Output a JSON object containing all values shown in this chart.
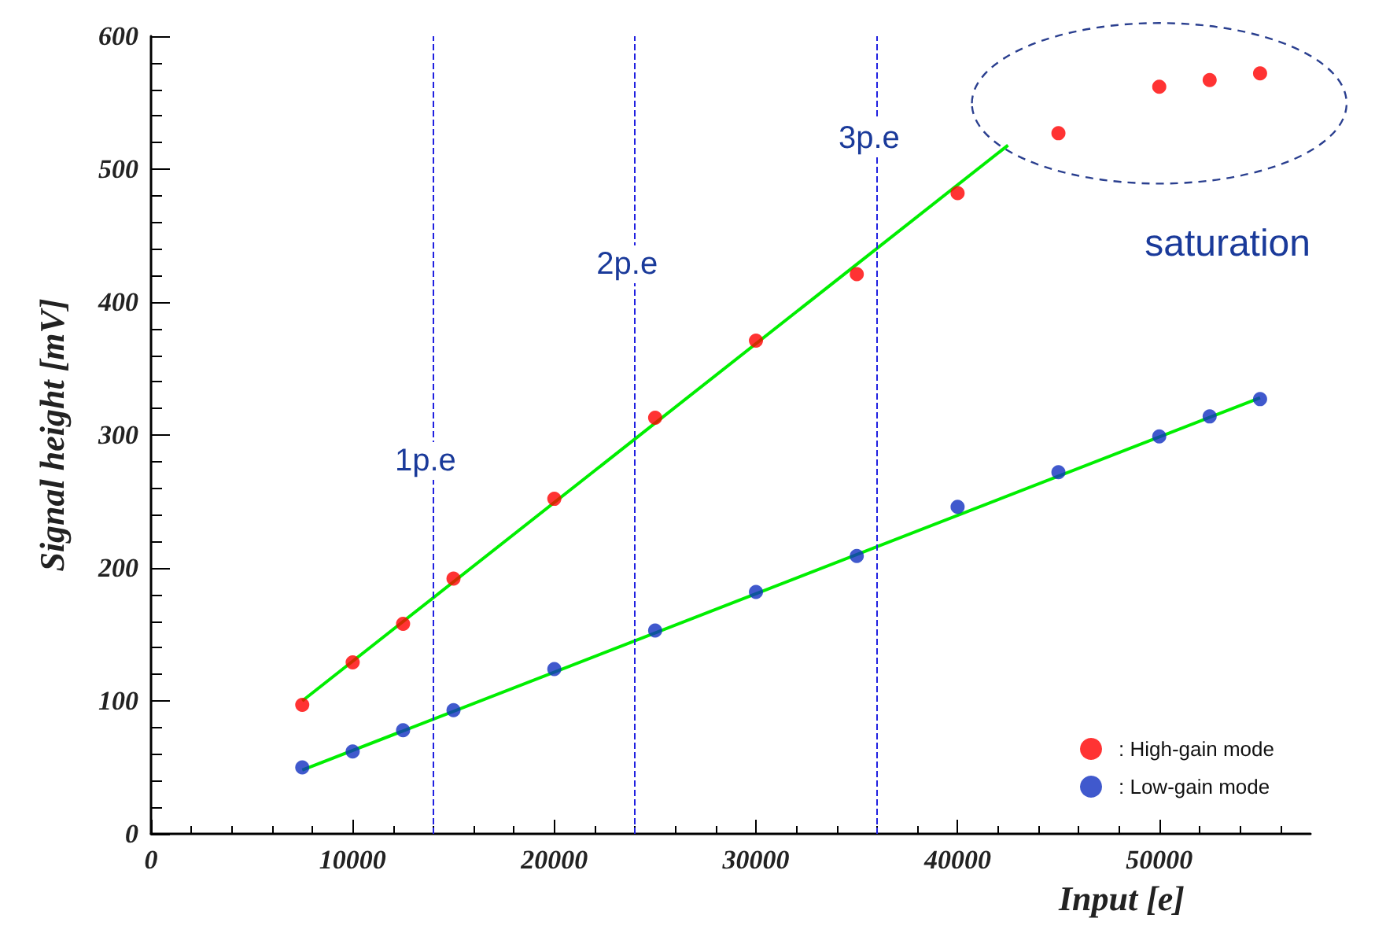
{
  "chart_data": {
    "type": "scatter",
    "xlabel": "Input [e]",
    "ylabel": "Signal height [mV]",
    "xlim": [
      0,
      57500
    ],
    "xticks": [
      0,
      10000,
      20000,
      30000,
      40000,
      50000
    ],
    "ylim": [
      0,
      600
    ],
    "yticks": [
      0,
      100,
      200,
      300,
      400,
      500,
      600
    ],
    "x": [
      7500,
      10000,
      12500,
      15000,
      20000,
      25000,
      30000,
      35000,
      40000,
      45000,
      50000,
      52500,
      55000
    ],
    "series": [
      {
        "name": ": High-gain mode",
        "color": "#ff0000",
        "values": [
          97,
          129,
          158,
          192,
          252,
          313,
          371,
          421,
          482,
          527,
          562,
          567,
          572
        ]
      },
      {
        "name": ": Low-gain mode",
        "color": "#1030c0",
        "values": [
          50,
          62,
          78,
          93,
          124,
          153,
          182,
          209,
          246,
          272,
          299,
          314,
          327
        ]
      },
      {
        "type": "line",
        "marker": "none",
        "color": "#00ee00",
        "x": [
          7500,
          42500
        ],
        "values": [
          100,
          518
        ]
      },
      {
        "type": "line",
        "marker": "none",
        "color": "#00ee00",
        "x": [
          7500,
          55000
        ],
        "values": [
          48,
          328
        ]
      }
    ],
    "ref_lines": [
      {
        "axis": "x",
        "value": 14000,
        "label": "1p.e",
        "color": "#2020e0",
        "line_style": "dashed"
      },
      {
        "axis": "x",
        "value": 24000,
        "label": "2p.e",
        "color": "#2020e0",
        "line_style": "dashed"
      },
      {
        "axis": "x",
        "value": 36000,
        "label": "3p.e",
        "color": "#2020e0",
        "line_style": "dashed"
      }
    ],
    "annotations": [
      "saturation"
    ],
    "marker": "circle",
    "legend": "bottom right",
    "grid": false
  }
}
